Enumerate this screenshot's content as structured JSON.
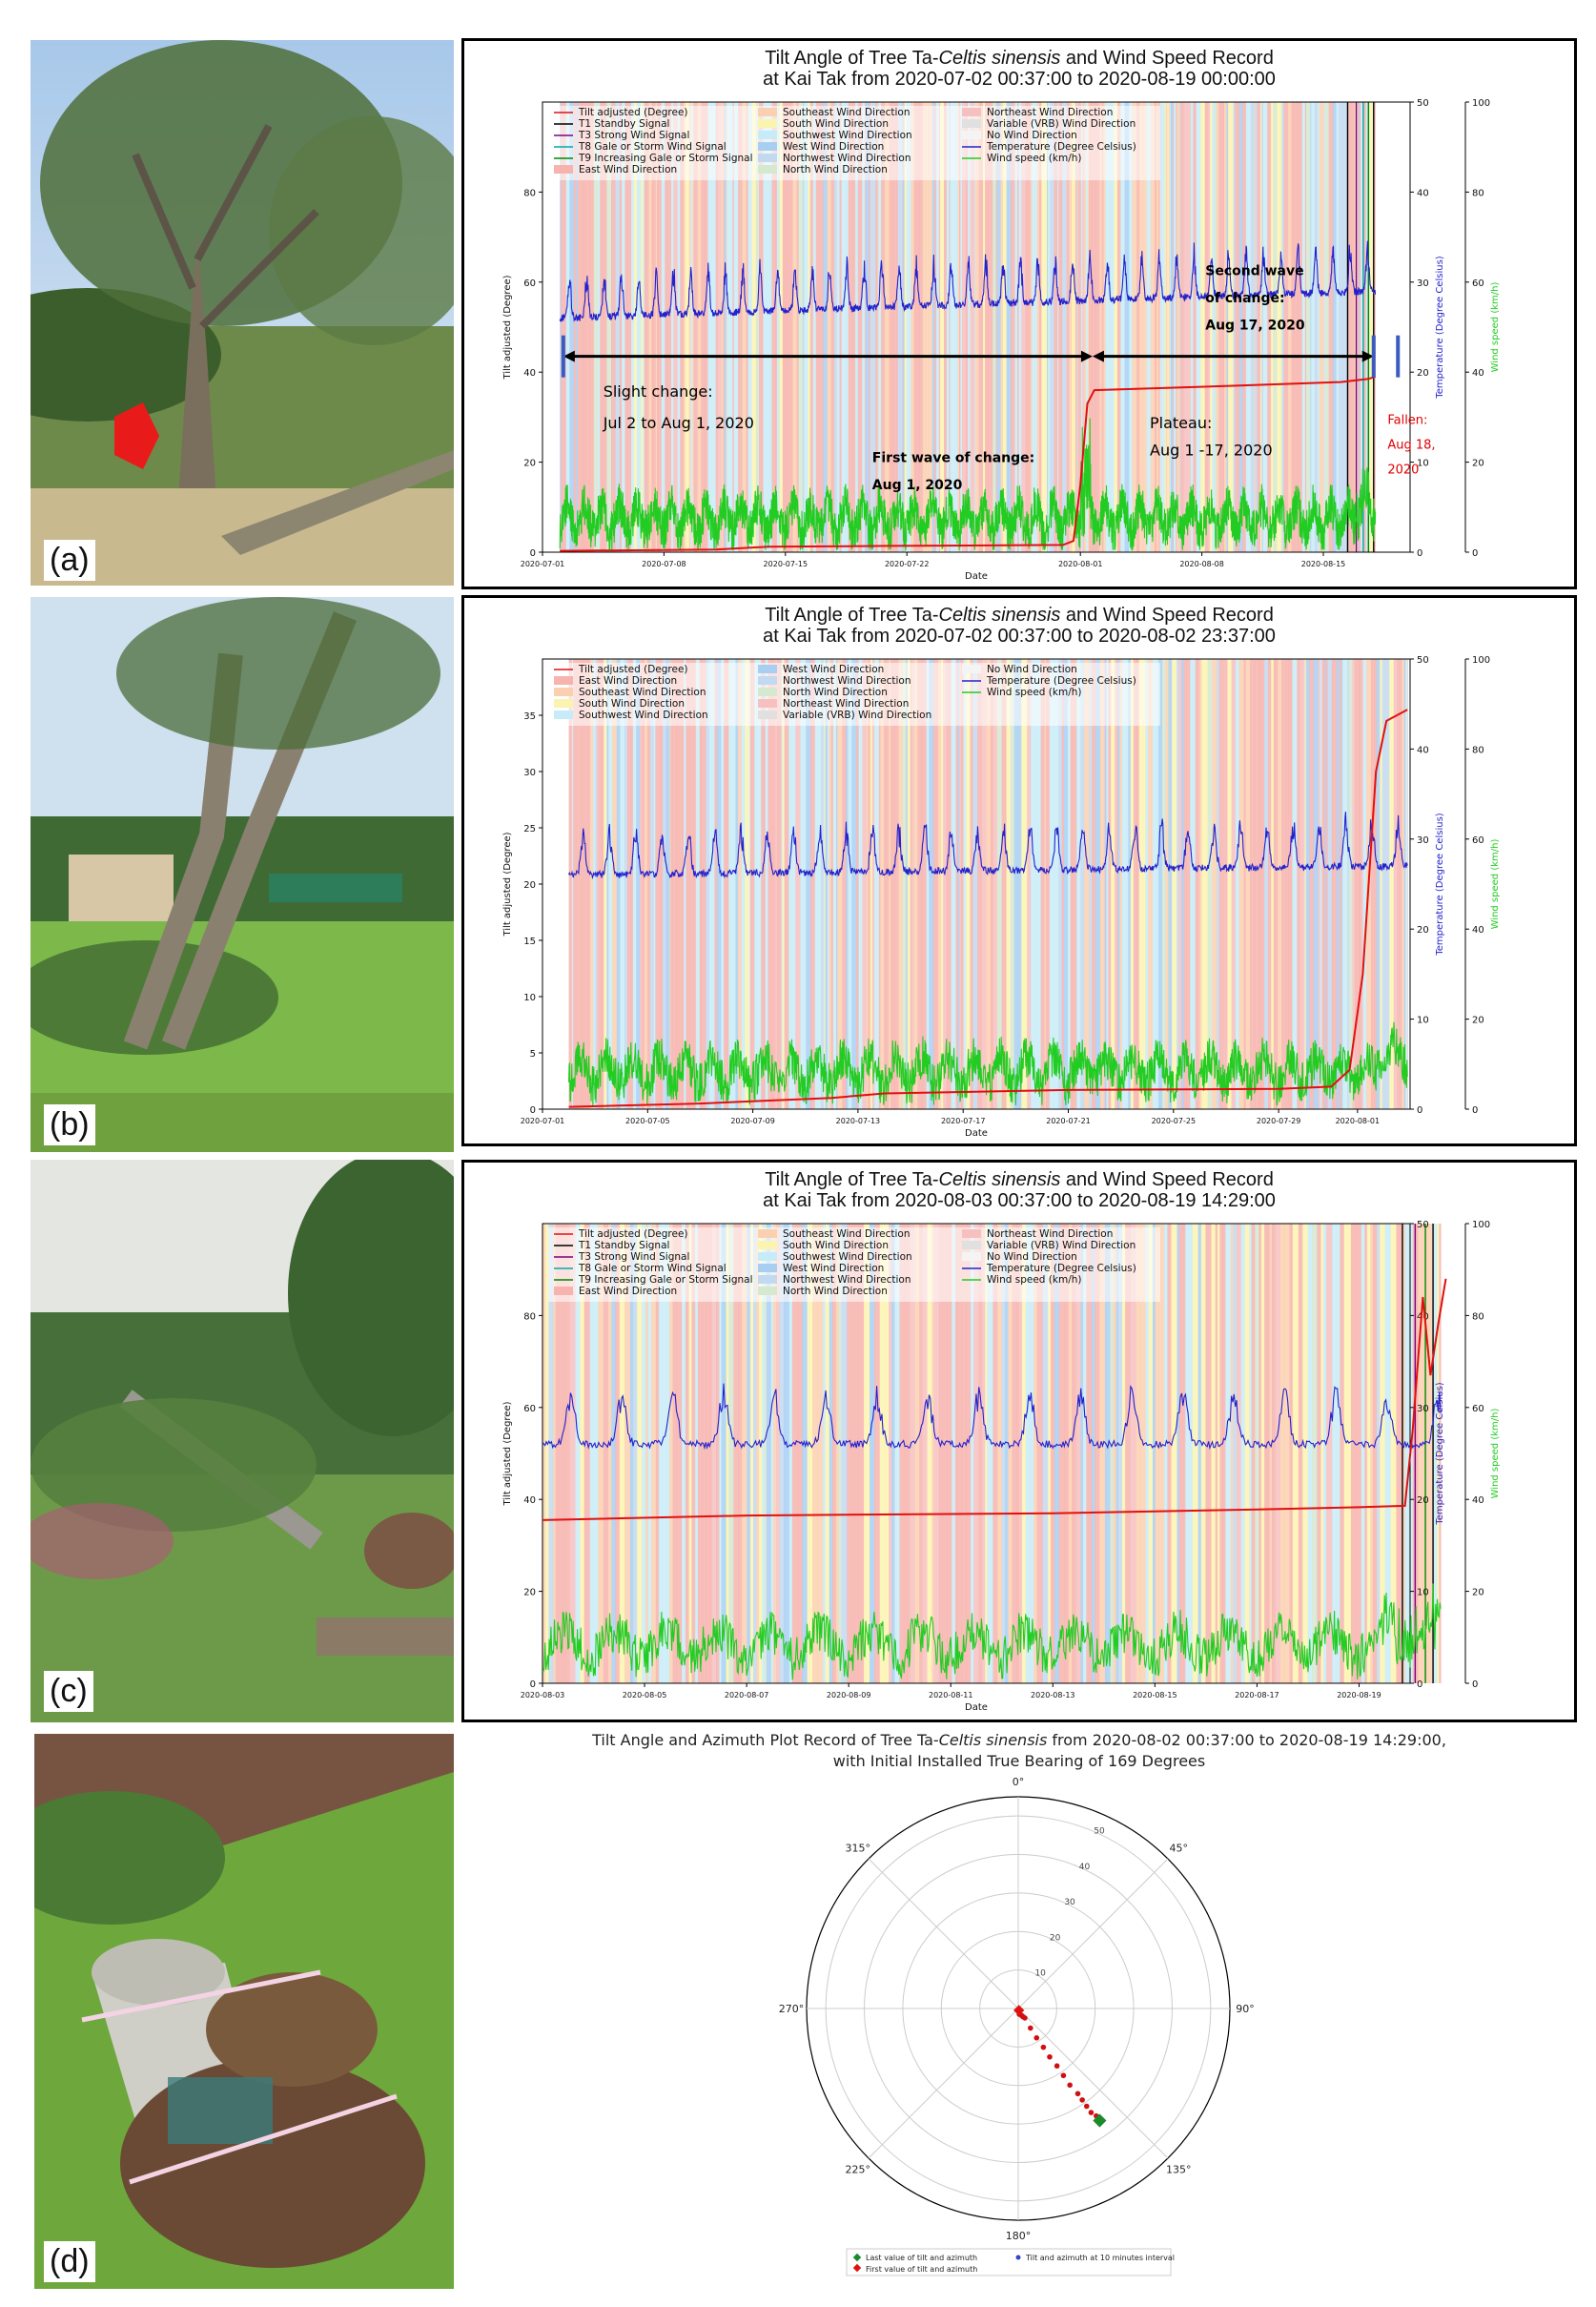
{
  "panels": [
    {
      "letter": "(a)"
    },
    {
      "letter": "(b)"
    },
    {
      "letter": "(c)"
    },
    {
      "letter": "(d)"
    }
  ],
  "colors": {
    "tilt": "#e01010",
    "temp": "#2222cc",
    "wind": "#22cc22",
    "east": "#f7b3ad",
    "southeast": "#fbd0b0",
    "south": "#fbf3b0",
    "southwest": "#c8ecf7",
    "west": "#a8cff2",
    "northwest": "#c3d9f0",
    "north": "#d5e8d0",
    "northeast": "#f7c0c0",
    "vrb": "#e0e0e0",
    "none": "#f4f4f4"
  },
  "chart_data": [
    {
      "id": "a",
      "type": "line",
      "title_line1_pre": "Tilt Angle of Tree Ta-",
      "title_species": "Celtis sinensis",
      "title_line1_post": " and Wind Speed Record",
      "title_line2": "at Kai Tak from 2020-07-02 00:37:00 to 2020-08-19 00:00:00",
      "xlabel": "Date",
      "ylabel": "Tilt adjusted (Degree)",
      "ylabel_temp": "Temperature (Degree Celsius)",
      "ylabel_wind": "Wind speed (km/h)",
      "xlim": [
        0,
        50
      ],
      "ylim": [
        0,
        100
      ],
      "ylim_temp": [
        0,
        50
      ],
      "ylim_wind": [
        0,
        100
      ],
      "xtick_pos": [
        0,
        7,
        14,
        21,
        31,
        38,
        45
      ],
      "xticks": [
        "2020-07-01",
        "2020-07-08",
        "2020-07-15",
        "2020-07-22",
        "2020-08-01",
        "2020-08-08",
        "2020-08-15"
      ],
      "yticks": [
        0,
        20,
        40,
        60,
        80
      ],
      "yticks_temp": [
        0,
        10,
        20,
        30,
        40,
        50
      ],
      "yticks_wind": [
        0,
        20,
        40,
        60,
        80,
        100
      ],
      "data_start": 1.0,
      "data_end": 48.0,
      "legend": [
        "Tilt adjusted (Degree)",
        "T1 Standby Signal",
        "T3 Strong Wind Signal",
        "T8 Gale or Storm Wind Signal",
        "T9 Increasing Gale or Storm Signal",
        "East Wind Direction",
        "Southeast Wind Direction",
        "South Wind Direction",
        "Southwest Wind Direction",
        "West Wind Direction",
        "Northwest Wind Direction",
        "North Wind Direction",
        "Northeast Wind Direction",
        "Variable (VRB) Wind Direction",
        "No Wind Direction",
        "Temperature (Degree Celsius)",
        "Wind speed (km/h)"
      ],
      "legend_keys": [
        "tilt",
        "t1",
        "t3",
        "t8",
        "t9",
        "east",
        "southeast",
        "south",
        "southwest",
        "west",
        "northwest",
        "north",
        "northeast",
        "vrb",
        "none",
        "temp",
        "wind"
      ],
      "legend_cols": 3,
      "tilt": [
        [
          1,
          0.3
        ],
        [
          10,
          0.6
        ],
        [
          13,
          1.2
        ],
        [
          20,
          1.4
        ],
        [
          30,
          1.6
        ],
        [
          30.6,
          2.5
        ],
        [
          31,
          15
        ],
        [
          31.4,
          33
        ],
        [
          31.8,
          36
        ],
        [
          40,
          37
        ],
        [
          46,
          37.8
        ],
        [
          47.6,
          38.5
        ],
        [
          48,
          39
        ]
      ],
      "temp_base": [
        28,
        31
      ],
      "temp_amp": 4.5,
      "wind_base": 6,
      "wind_amp": 6,
      "signals": [
        {
          "x": 46.4,
          "c": "#000"
        },
        {
          "x": 46.9,
          "c": "#800080"
        },
        {
          "x": 47.3,
          "c": "#00aaaa"
        },
        {
          "x": 47.6,
          "c": "#008800"
        },
        {
          "x": 47.9,
          "c": "#000"
        }
      ],
      "annotations": [
        {
          "text": "Slight change:",
          "x": 3.5,
          "y": 34.5,
          "size": 16,
          "color": "#000",
          "weight": "normal"
        },
        {
          "text": "Jul 2 to Aug 1, 2020",
          "x": 3.5,
          "y": 27.5,
          "size": 16,
          "color": "#000",
          "weight": "normal"
        },
        {
          "text": "First wave of change:",
          "x": 19,
          "y": 20,
          "size": 14,
          "color": "#000",
          "weight": "bold"
        },
        {
          "text": "Aug 1, 2020",
          "x": 19,
          "y": 14,
          "size": 14,
          "color": "#000",
          "weight": "bold"
        },
        {
          "text": "Plateau:",
          "x": 35,
          "y": 27.5,
          "size": 16,
          "color": "#000",
          "weight": "normal"
        },
        {
          "text": "Aug 1 -17, 2020",
          "x": 35,
          "y": 21.5,
          "size": 16,
          "color": "#000",
          "weight": "normal"
        },
        {
          "text": "Second wave",
          "x": 38.2,
          "y": 61.5,
          "size": 14,
          "color": "#000",
          "weight": "bold"
        },
        {
          "text": "of change:",
          "x": 38.2,
          "y": 55.5,
          "size": 14,
          "color": "#000",
          "weight": "bold"
        },
        {
          "text": "Aug 17, 2020",
          "x": 38.2,
          "y": 49.5,
          "size": 14,
          "color": "#000",
          "weight": "bold"
        },
        {
          "text": "Fallen:",
          "x": 48.7,
          "y": 28.5,
          "size": 13,
          "color": "#e00000",
          "weight": "normal"
        },
        {
          "text": "Aug 18,",
          "x": 48.7,
          "y": 23,
          "size": 13,
          "color": "#e00000",
          "weight": "normal"
        },
        {
          "text": "2020",
          "x": 48.7,
          "y": 17.5,
          "size": 13,
          "color": "#e00000",
          "weight": "normal"
        }
      ],
      "arrows": [
        {
          "x1": 1.2,
          "x2": 31.7,
          "y": 43.5
        },
        {
          "x1": 31.7,
          "x2": 47.9,
          "y": 43.5
        }
      ],
      "bars": [
        [
          1.2,
          43.5
        ],
        [
          47.9,
          43.5
        ],
        [
          49.3,
          43.5
        ]
      ]
    },
    {
      "id": "b",
      "type": "line",
      "title_line1_pre": "Tilt Angle of Tree Ta-",
      "title_species": "Celtis sinensis",
      "title_line1_post": " and Wind Speed Record",
      "title_line2": "at Kai Tak from 2020-07-02 00:37:00 to 2020-08-02 23:37:00",
      "xlabel": "Date",
      "ylabel": "Tilt adjusted (Degree)",
      "ylabel_temp": "Temperature (Degree Celsius)",
      "ylabel_wind": "Wind speed (km/h)",
      "xlim": [
        0,
        33
      ],
      "ylim": [
        0,
        40
      ],
      "ylim_temp": [
        0,
        50
      ],
      "ylim_wind": [
        0,
        100
      ],
      "xtick_pos": [
        0,
        4,
        8,
        12,
        16,
        20,
        24,
        28,
        31
      ],
      "xticks": [
        "2020-07-01",
        "2020-07-05",
        "2020-07-09",
        "2020-07-13",
        "2020-07-17",
        "2020-07-21",
        "2020-07-25",
        "2020-07-29",
        "2020-08-01"
      ],
      "yticks": [
        0,
        5,
        10,
        15,
        20,
        25,
        30,
        35
      ],
      "yticks_temp": [
        0,
        10,
        20,
        30,
        40,
        50
      ],
      "yticks_wind": [
        0,
        20,
        40,
        60,
        80,
        100
      ],
      "data_start": 1.0,
      "data_end": 32.9,
      "legend": [
        "Tilt adjusted (Degree)",
        "East Wind Direction",
        "Southeast Wind Direction",
        "South Wind Direction",
        "Southwest Wind Direction",
        "West Wind Direction",
        "Northwest Wind Direction",
        "North Wind Direction",
        "Northeast Wind Direction",
        "Variable (VRB) Wind Direction",
        "No Wind Direction",
        "Temperature (Degree Celsius)",
        "Wind speed (km/h)"
      ],
      "legend_keys": [
        "tilt",
        "east",
        "southeast",
        "south",
        "southwest",
        "west",
        "northwest",
        "north",
        "northeast",
        "vrb",
        "none",
        "temp",
        "wind"
      ],
      "legend_cols": 3,
      "tilt": [
        [
          1,
          0.2
        ],
        [
          6,
          0.5
        ],
        [
          11,
          1.0
        ],
        [
          13,
          1.4
        ],
        [
          15.5,
          1.5
        ],
        [
          20,
          1.7
        ],
        [
          28,
          1.8
        ],
        [
          30,
          2.0
        ],
        [
          30.7,
          3.5
        ],
        [
          31.2,
          12
        ],
        [
          31.7,
          30
        ],
        [
          32.1,
          34.5
        ],
        [
          32.9,
          35.5
        ]
      ],
      "temp_base": [
        28,
        29
      ],
      "temp_amp": 4.5,
      "wind_base": 7,
      "wind_amp": 6,
      "signals": [],
      "annotations": [],
      "arrows": [],
      "bars": []
    },
    {
      "id": "c",
      "type": "line",
      "title_line1_pre": "Tilt Angle of Tree Ta-",
      "title_species": "Celtis sinensis",
      "title_line1_post": " and Wind Speed Record",
      "title_line2": "at Kai Tak from 2020-08-03 00:37:00 to 2020-08-19 14:29:00",
      "xlabel": "Date",
      "ylabel": "Tilt adjusted (Degree)",
      "ylabel_temp": "Temperature (Degree Celsius)",
      "ylabel_wind": "Wind speed (km/h)",
      "xlim": [
        0,
        17
      ],
      "ylim": [
        0,
        100
      ],
      "ylim_temp": [
        0,
        50
      ],
      "ylim_wind": [
        0,
        100
      ],
      "xtick_pos": [
        0,
        2,
        4,
        6,
        8,
        10,
        12,
        14,
        16
      ],
      "xticks": [
        "2020-08-03",
        "2020-08-05",
        "2020-08-07",
        "2020-08-09",
        "2020-08-11",
        "2020-08-13",
        "2020-08-15",
        "2020-08-17",
        "2020-08-19"
      ],
      "yticks": [
        0,
        20,
        40,
        60,
        80
      ],
      "yticks_temp": [
        0,
        10,
        20,
        30,
        40,
        50
      ],
      "yticks_wind": [
        0,
        20,
        40,
        60,
        80,
        100
      ],
      "data_start": 0.0,
      "data_end": 17.6,
      "legend": [
        "Tilt adjusted (Degree)",
        "T1 Standby Signal",
        "T3 Strong Wind Signal",
        "T8 Gale or Storm Wind Signal",
        "T9 Increasing Gale or Storm Signal",
        "East Wind Direction",
        "Southeast Wind Direction",
        "South Wind Direction",
        "Southwest Wind Direction",
        "West Wind Direction",
        "Northwest Wind Direction",
        "North Wind Direction",
        "Northeast Wind Direction",
        "Variable (VRB) Wind Direction",
        "No Wind Direction",
        "Temperature (Degree Celsius)",
        "Wind speed (km/h)"
      ],
      "legend_keys": [
        "tilt",
        "t1",
        "t3",
        "t8",
        "t9",
        "east",
        "southeast",
        "south",
        "southwest",
        "west",
        "northwest",
        "north",
        "northeast",
        "vrb",
        "none",
        "temp",
        "wind"
      ],
      "legend_cols": 3,
      "tilt": [
        [
          0,
          35.5
        ],
        [
          4,
          36.5
        ],
        [
          10,
          37
        ],
        [
          14,
          37.8
        ],
        [
          16,
          38.3
        ],
        [
          16.9,
          38.6
        ],
        [
          17.05,
          55
        ],
        [
          17.25,
          84
        ],
        [
          17.4,
          67
        ],
        [
          17.55,
          78
        ],
        [
          17.7,
          88
        ]
      ],
      "temp_base": [
        28,
        28
      ],
      "temp_amp": 5,
      "wind_base": 7,
      "wind_amp": 6,
      "signals": [
        {
          "x": 16.85,
          "c": "#000"
        },
        {
          "x": 17.1,
          "c": "#800080"
        },
        {
          "x": 17.3,
          "c": "#008800"
        },
        {
          "x": 17.45,
          "c": "#000"
        }
      ],
      "annotations": [],
      "arrows": [],
      "bars": []
    },
    {
      "id": "d",
      "type": "scatter",
      "polar": true,
      "title_line1_pre": "Tilt Angle and Azimuth Plot Record of Tree Ta-",
      "title_species": "Celtis sinensis",
      "title_line1_post": " from 2020-08-02 00:37:00 to 2020-08-19 14:29:00,",
      "title_line2": "with Initial Installed True Bearing of 169 Degrees",
      "angle_labels": [
        "0°",
        "45°",
        "90°",
        "135°",
        "180°",
        "225°",
        "270°",
        "315°"
      ],
      "radial_ticks": [
        10,
        20,
        30,
        40,
        50
      ],
      "rlim": [
        0,
        55
      ],
      "points": [
        {
          "az": 160,
          "tilt": 0.5
        },
        {
          "az": 165,
          "tilt": 1.0
        },
        {
          "az": 170,
          "tilt": 1.5
        },
        {
          "az": 155,
          "tilt": 2.0
        },
        {
          "az": 150,
          "tilt": 2.5
        },
        {
          "az": 145,
          "tilt": 3.0
        },
        {
          "az": 148,
          "tilt": 6.0
        },
        {
          "az": 148,
          "tilt": 9.0
        },
        {
          "az": 147,
          "tilt": 12.0
        },
        {
          "az": 147,
          "tilt": 15.0
        },
        {
          "az": 146,
          "tilt": 18.0
        },
        {
          "az": 146,
          "tilt": 21.0
        },
        {
          "az": 146,
          "tilt": 24.0
        },
        {
          "az": 145,
          "tilt": 27.0
        },
        {
          "az": 145,
          "tilt": 29.0
        },
        {
          "az": 145,
          "tilt": 31.0
        },
        {
          "az": 145,
          "tilt": 33.0
        },
        {
          "az": 144,
          "tilt": 34.5
        },
        {
          "az": 144,
          "tilt": 35.5
        }
      ],
      "first": {
        "az": 160,
        "tilt": 0.5
      },
      "last": {
        "az": 144,
        "tilt": 36.0
      },
      "legend": [
        "Last value of tilt and azimuth",
        "Tilt and azimuth at 10 minutes interval",
        "First value of tilt and azimuth"
      ]
    }
  ]
}
